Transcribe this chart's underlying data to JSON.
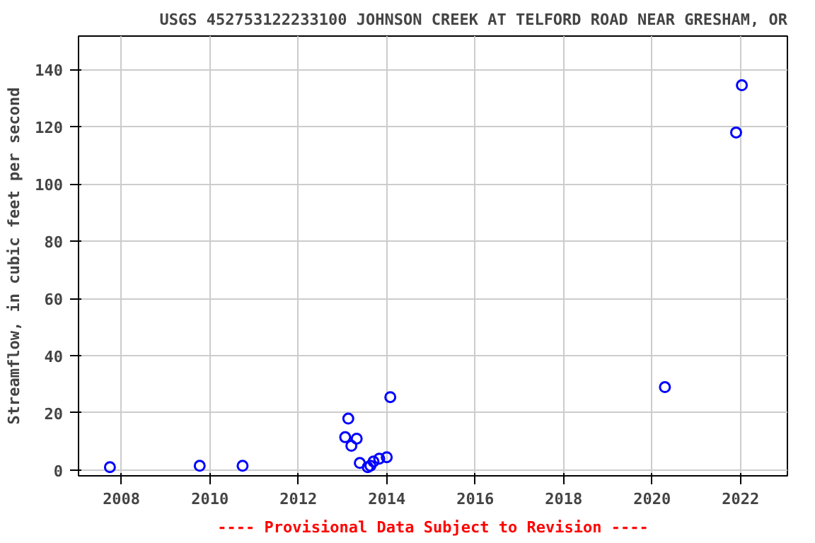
{
  "chart_data": {
    "type": "scatter",
    "title": "USGS 452753122233100 JOHNSON CREEK AT TELFORD ROAD NEAR GRESHAM, OR",
    "ylabel": "Streamflow, in cubic feet per second",
    "annotations": [
      "---- Provisional Data Subject to Revision ----"
    ],
    "x": [
      2007.74,
      2009.77,
      2010.74,
      2013.06,
      2013.13,
      2013.2,
      2013.32,
      2013.39,
      2013.57,
      2013.63,
      2013.7,
      2013.83,
      2014.0,
      2014.08,
      2020.29,
      2021.9,
      2022.03
    ],
    "series": [
      {
        "color": "#0000ff",
        "values": [
          1,
          1.5,
          1.5,
          11.5,
          18,
          8.5,
          11,
          2.5,
          1,
          1.5,
          3,
          4,
          4.5,
          25.5,
          29,
          118,
          134.5
        ]
      }
    ],
    "xlim": [
      2007.03,
      2023.06
    ],
    "ylim": [
      -2,
      151.7
    ],
    "xticks": [
      2008,
      2010,
      2012,
      2014,
      2016,
      2018,
      2020,
      2022
    ],
    "yticks": [
      0,
      20,
      40,
      60,
      80,
      100,
      120,
      140
    ],
    "grid": true,
    "marker": "circle"
  }
}
